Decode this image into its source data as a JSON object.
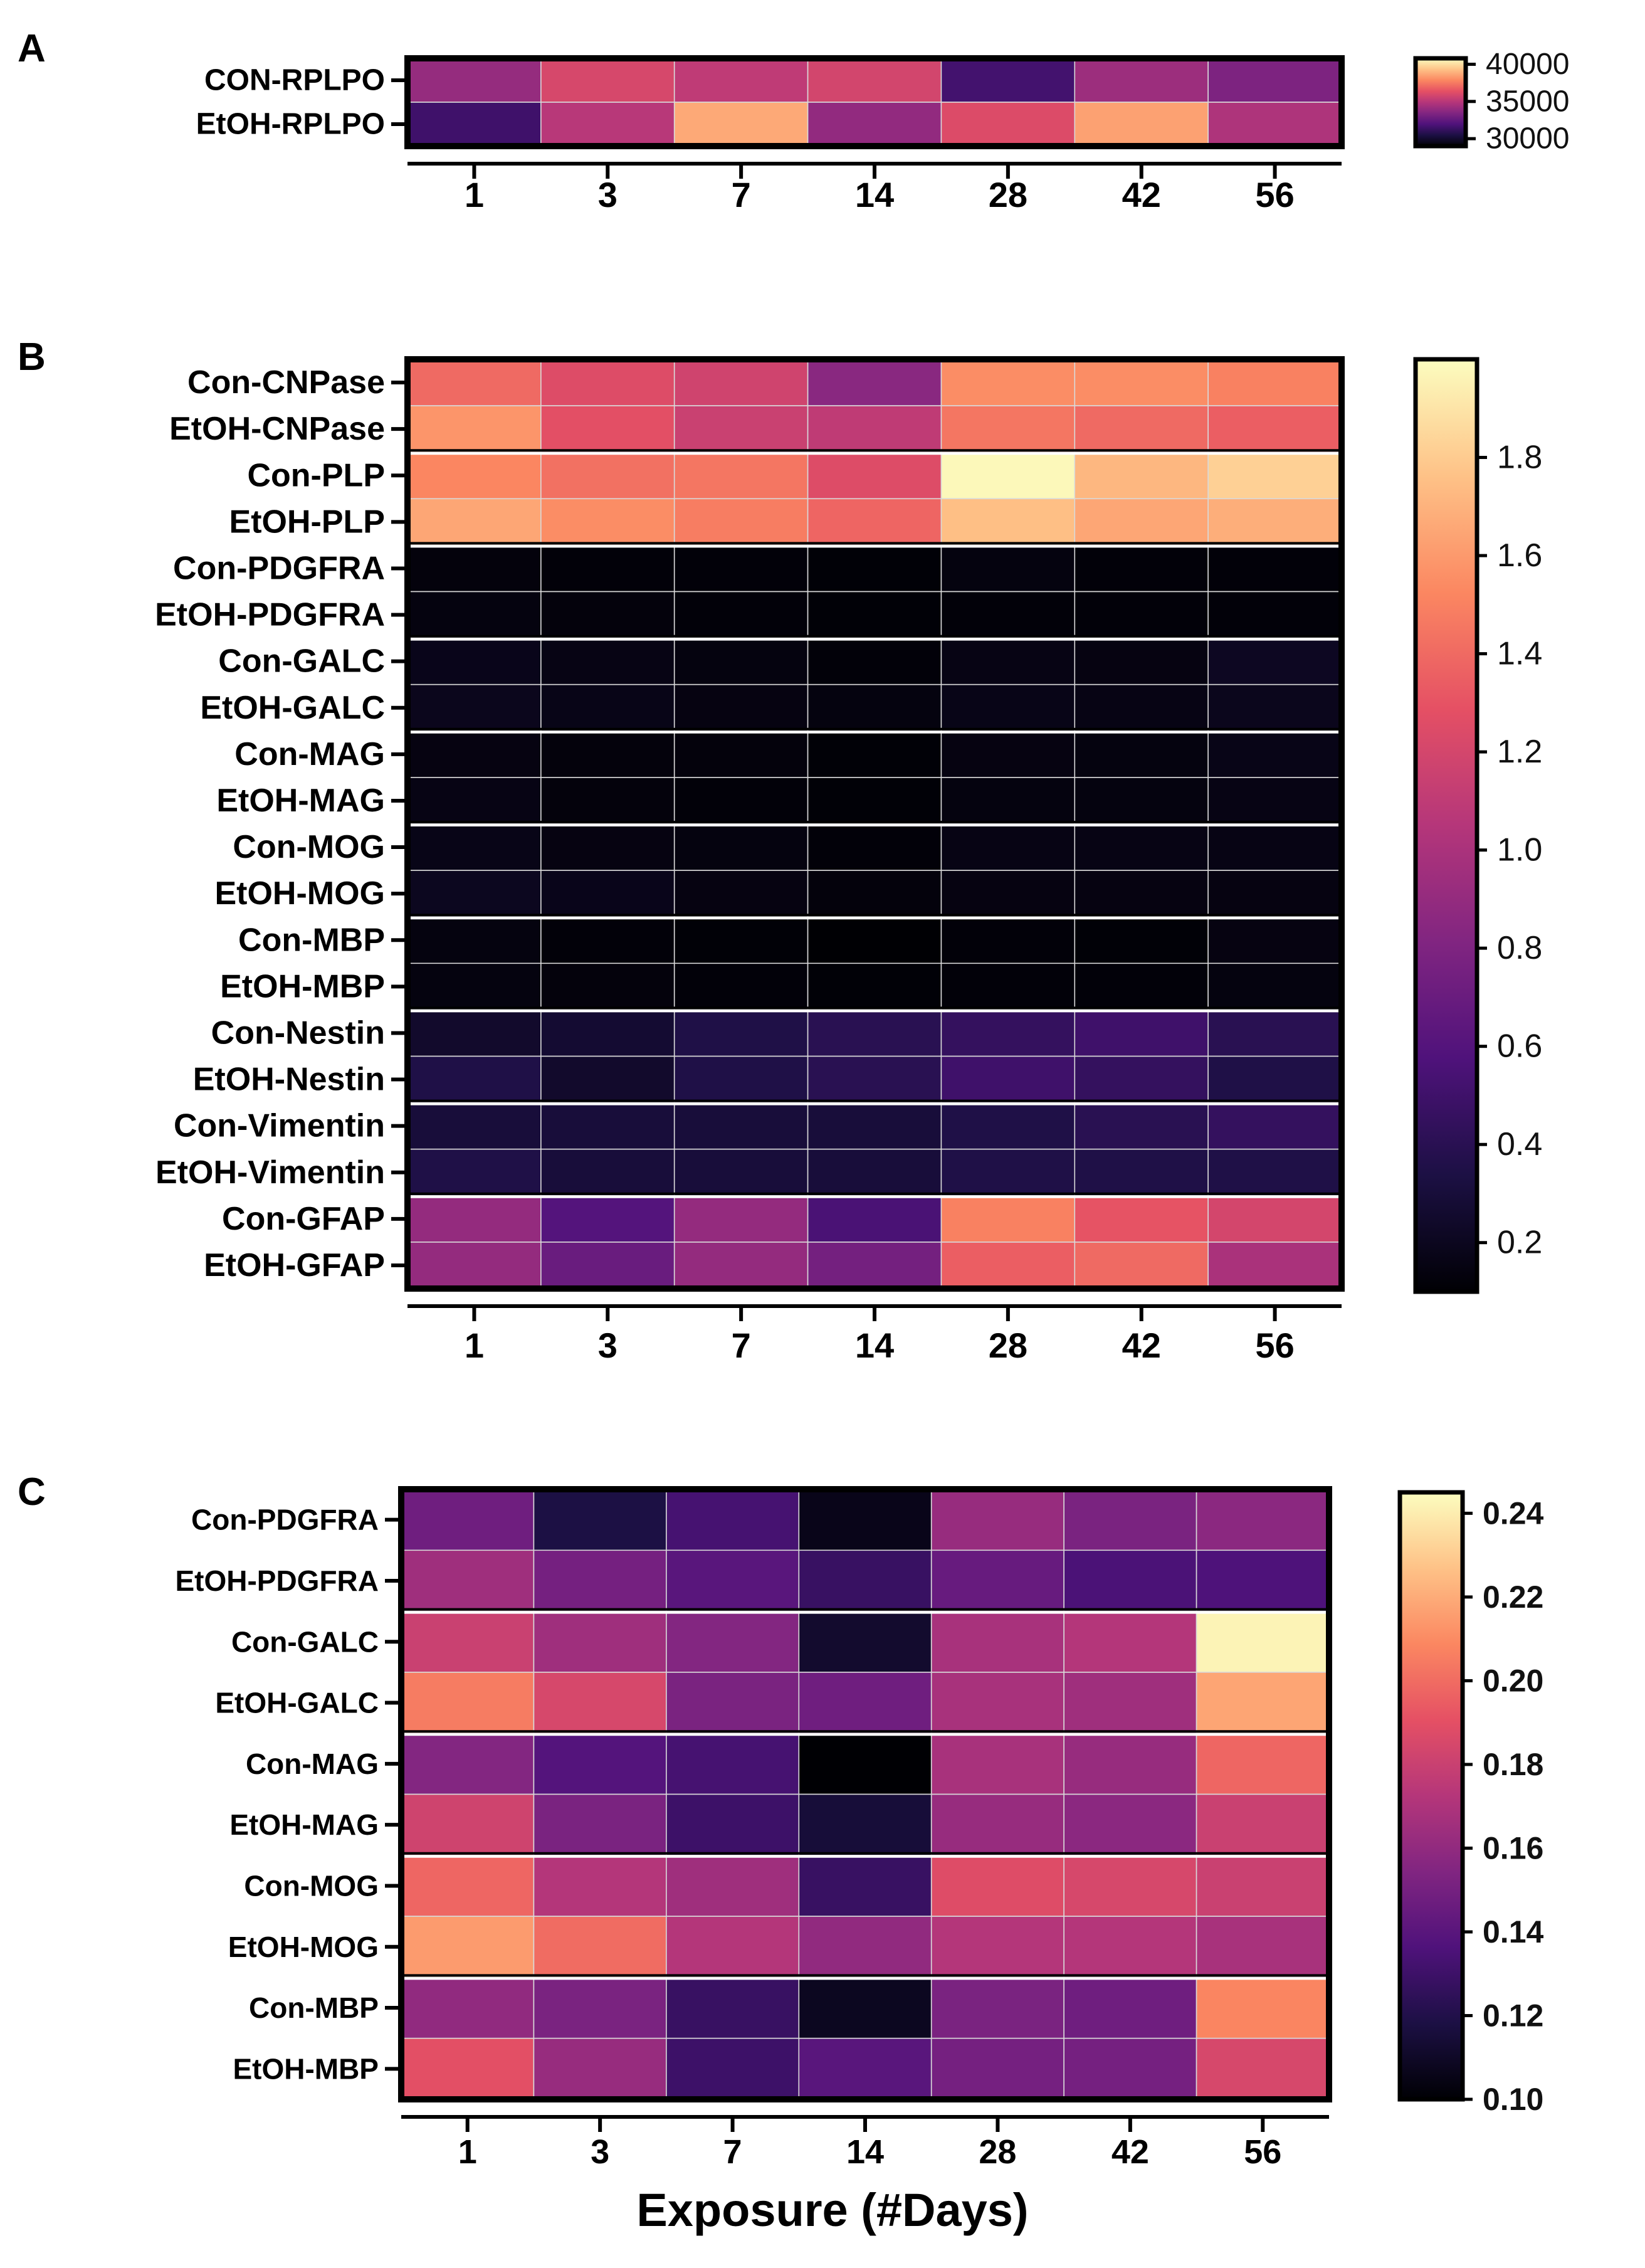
{
  "figure": {
    "xlabel": "Exposure (#Days)",
    "panel_letters": [
      "A",
      "B",
      "C"
    ]
  },
  "chart_data": [
    {
      "type": "heatmap",
      "panel": "A",
      "title": "",
      "xlabel": "",
      "x": [
        "1",
        "3",
        "7",
        "14",
        "28",
        "42",
        "56"
      ],
      "rows": [
        "CON-RPLPO",
        "EtOH-RPLPO"
      ],
      "values": [
        [
          34000,
          35900,
          35200,
          35800,
          31600,
          34200,
          33300
        ],
        [
          31500,
          35000,
          38700,
          33900,
          36100,
          38500,
          34700
        ]
      ],
      "colorbar": {
        "ticks": [
          30000,
          35000,
          40000
        ],
        "tick_labels": [
          "30000",
          "35000",
          "40000"
        ],
        "range": [
          29000,
          40800
        ],
        "colormap": "magma"
      }
    },
    {
      "type": "heatmap",
      "panel": "B",
      "title": "",
      "xlabel": "",
      "x": [
        "1",
        "3",
        "7",
        "14",
        "28",
        "42",
        "56"
      ],
      "rows": [
        "Con-CNPase",
        "EtOH-CNPase",
        "Con-PLP",
        "EtOH-PLP",
        "Con-PDGFRA",
        "EtOH-PDGFRA",
        "Con-GALC",
        "EtOH-GALC",
        "Con-MAG",
        "EtOH-MAG",
        "Con-MOG",
        "EtOH-MOG",
        "Con-MBP",
        "EtOH-MBP",
        "Con-Nestin",
        "EtOH-Nestin",
        "Con-Vimentin",
        "EtOH-Vimentin",
        "Con-GFAP",
        "EtOH-GFAP"
      ],
      "group_sizes": [
        2,
        2,
        2,
        2,
        2,
        2,
        2,
        2,
        2,
        2
      ],
      "values": [
        [
          1.4,
          1.25,
          1.18,
          0.85,
          1.55,
          1.55,
          1.5
        ],
        [
          1.58,
          1.28,
          1.15,
          1.1,
          1.45,
          1.4,
          1.35
        ],
        [
          1.52,
          1.43,
          1.45,
          1.25,
          1.98,
          1.72,
          1.82
        ],
        [
          1.65,
          1.55,
          1.48,
          1.38,
          1.75,
          1.65,
          1.68
        ],
        [
          0.13,
          0.12,
          0.12,
          0.11,
          0.14,
          0.12,
          0.12
        ],
        [
          0.14,
          0.13,
          0.12,
          0.11,
          0.12,
          0.12,
          0.12
        ],
        [
          0.18,
          0.16,
          0.14,
          0.12,
          0.16,
          0.15,
          0.21
        ],
        [
          0.19,
          0.17,
          0.15,
          0.14,
          0.17,
          0.16,
          0.19
        ],
        [
          0.15,
          0.13,
          0.13,
          0.11,
          0.15,
          0.14,
          0.17
        ],
        [
          0.16,
          0.13,
          0.12,
          0.11,
          0.14,
          0.14,
          0.16
        ],
        [
          0.17,
          0.15,
          0.14,
          0.12,
          0.16,
          0.16,
          0.16
        ],
        [
          0.2,
          0.18,
          0.15,
          0.13,
          0.15,
          0.15,
          0.15
        ],
        [
          0.14,
          0.12,
          0.11,
          0.1,
          0.12,
          0.11,
          0.15
        ],
        [
          0.14,
          0.13,
          0.12,
          0.11,
          0.12,
          0.12,
          0.14
        ],
        [
          0.25,
          0.27,
          0.35,
          0.4,
          0.45,
          0.5,
          0.4
        ],
        [
          0.35,
          0.25,
          0.35,
          0.4,
          0.5,
          0.45,
          0.35
        ],
        [
          0.3,
          0.3,
          0.3,
          0.3,
          0.35,
          0.4,
          0.45
        ],
        [
          0.35,
          0.3,
          0.3,
          0.3,
          0.35,
          0.35,
          0.35
        ],
        [
          0.9,
          0.6,
          0.9,
          0.55,
          1.5,
          1.3,
          1.2
        ],
        [
          0.9,
          0.7,
          0.9,
          0.75,
          1.35,
          1.4,
          1.0
        ]
      ],
      "colorbar": {
        "ticks": [
          0.2,
          0.4,
          0.6,
          0.8,
          1.0,
          1.2,
          1.4,
          1.6,
          1.8
        ],
        "tick_labels": [
          "0.2",
          "0.4",
          "0.6",
          "0.8",
          "1.0",
          "1.2",
          "1.4",
          "1.6",
          "1.8"
        ],
        "range": [
          0.1,
          2.0
        ],
        "colormap": "magma"
      }
    },
    {
      "type": "heatmap",
      "panel": "C",
      "title": "",
      "xlabel": "Exposure (#Days)",
      "x": [
        "1",
        "3",
        "7",
        "14",
        "28",
        "42",
        "56"
      ],
      "rows": [
        "Con-PDGFRA",
        "EtOH-PDGFRA",
        "Con-GALC",
        "EtOH-GALC",
        "Con-MAG",
        "EtOH-MAG",
        "Con-MOG",
        "EtOH-MOG",
        "Con-MBP",
        "EtOH-MBP"
      ],
      "group_sizes": [
        2,
        2,
        2,
        2,
        2
      ],
      "values": [
        [
          0.148,
          0.118,
          0.133,
          0.106,
          0.162,
          0.152,
          0.158
        ],
        [
          0.165,
          0.15,
          0.14,
          0.128,
          0.145,
          0.135,
          0.136
        ],
        [
          0.18,
          0.165,
          0.155,
          0.112,
          0.168,
          0.172,
          0.242
        ],
        [
          0.205,
          0.185,
          0.152,
          0.148,
          0.168,
          0.165,
          0.218
        ],
        [
          0.155,
          0.138,
          0.133,
          0.1,
          0.168,
          0.162,
          0.198
        ],
        [
          0.182,
          0.152,
          0.13,
          0.115,
          0.162,
          0.158,
          0.18
        ],
        [
          0.198,
          0.172,
          0.165,
          0.128,
          0.188,
          0.185,
          0.18
        ],
        [
          0.215,
          0.2,
          0.172,
          0.16,
          0.172,
          0.172,
          0.168
        ],
        [
          0.16,
          0.152,
          0.128,
          0.108,
          0.152,
          0.148,
          0.208
        ],
        [
          0.19,
          0.162,
          0.13,
          0.14,
          0.15,
          0.15,
          0.185
        ]
      ],
      "colorbar": {
        "ticks": [
          0.1,
          0.12,
          0.14,
          0.16,
          0.18,
          0.2,
          0.22,
          0.24
        ],
        "tick_labels": [
          "0.10",
          "0.12",
          "0.14",
          "0.16",
          "0.18",
          "0.20",
          "0.22",
          "0.24"
        ],
        "range": [
          0.1,
          0.245
        ],
        "colormap": "magma"
      }
    }
  ]
}
